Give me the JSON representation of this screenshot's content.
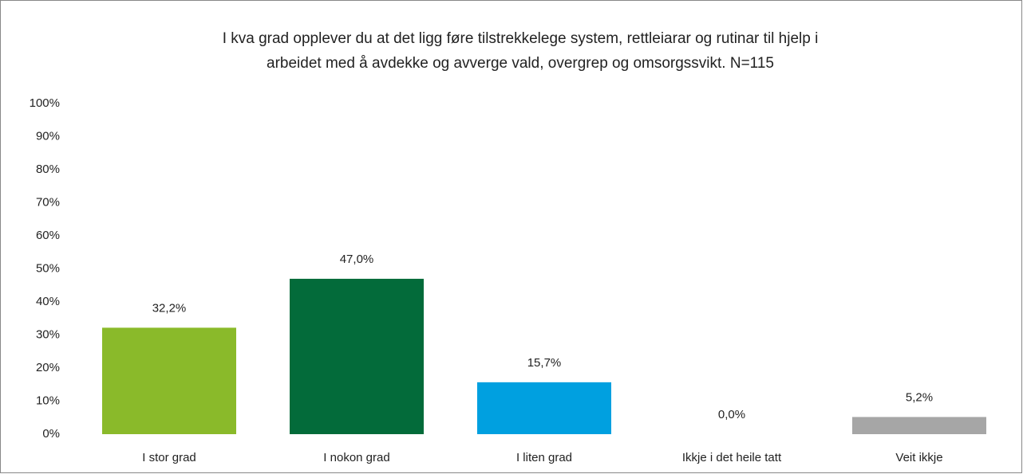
{
  "chart_data": {
    "type": "bar",
    "title": [
      "I kva grad opplever du at det ligg føre tilstrekkelege system, rettleiarar og rutinar til hjelp i",
      "arbeidet med å avdekke og avverge vald, overgrep og omsorgssvikt.  N=115"
    ],
    "categories": [
      "I stor grad",
      "I nokon grad",
      "I liten grad",
      "Ikkje i det heile tatt",
      "Veit ikkje"
    ],
    "values": [
      32.2,
      47.0,
      15.7,
      0.0,
      5.2
    ],
    "value_labels": [
      "32,2%",
      "47,0%",
      "15,7%",
      "0,0%",
      "5,2%"
    ],
    "colors": [
      "#8aba2a",
      "#036b3a",
      "#00a0e0",
      "#7f7f7f",
      "#a6a6a6"
    ],
    "ylim": [
      0,
      100
    ],
    "yticks": [
      {
        "value": 0,
        "label": "0%"
      },
      {
        "value": 10,
        "label": "10%"
      },
      {
        "value": 20,
        "label": "20%"
      },
      {
        "value": 30,
        "label": "30%"
      },
      {
        "value": 40,
        "label": "40%"
      },
      {
        "value": 50,
        "label": "50%"
      },
      {
        "value": 60,
        "label": "60%"
      },
      {
        "value": 70,
        "label": "70%"
      },
      {
        "value": 80,
        "label": "80%"
      },
      {
        "value": 90,
        "label": "90%"
      },
      {
        "value": 100,
        "label": "100%"
      }
    ],
    "grid": false
  }
}
